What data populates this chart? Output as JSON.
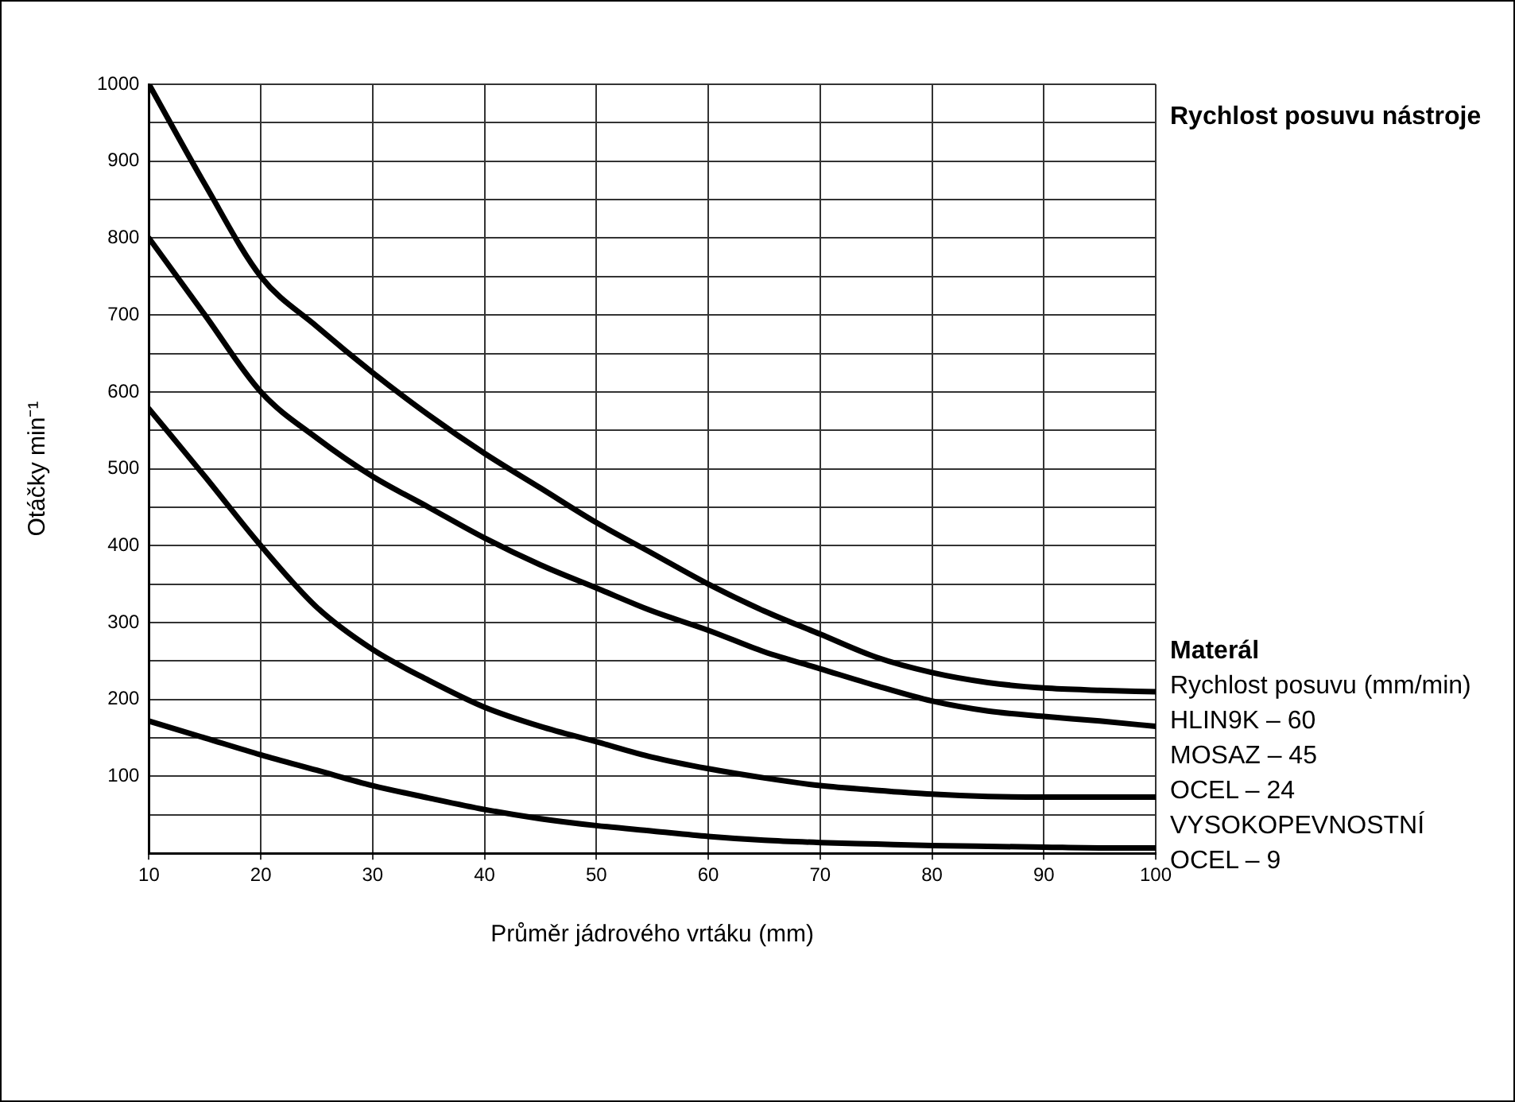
{
  "chart_data": {
    "type": "line",
    "title": "Rychlost posuvu nástroje",
    "xlabel": "Průměr jádrového vrtáku (mm)",
    "ylabel": "Otáčky min⁻¹",
    "legend_title": "Materál",
    "annotations": [
      "Rychlost posuvu (mm/min)",
      "HLIN9K – 60",
      "MOSAZ – 45",
      "OCEL – 24",
      "VYSOKOPEVNOSTNÍ",
      "OCEL – 9"
    ],
    "x": [
      10,
      15,
      20,
      25,
      30,
      35,
      40,
      45,
      50,
      55,
      60,
      65,
      70,
      75,
      80,
      85,
      90,
      95,
      100
    ],
    "series": [
      {
        "color": "#000000",
        "values": [
          1000,
          870,
          750,
          685,
          625,
          570,
          520,
          475,
          430,
          390,
          350,
          315,
          285,
          255,
          235,
          222,
          215,
          212,
          210
        ]
      },
      {
        "color": "#000000",
        "values": [
          800,
          700,
          600,
          540,
          490,
          450,
          410,
          375,
          345,
          315,
          290,
          262,
          240,
          218,
          198,
          185,
          178,
          172,
          165
        ]
      },
      {
        "color": "#000000",
        "values": [
          578,
          490,
          400,
          320,
          265,
          225,
          190,
          165,
          145,
          125,
          110,
          98,
          88,
          82,
          77,
          74,
          73,
          73,
          73
        ]
      },
      {
        "color": "#000000",
        "values": [
          172,
          150,
          128,
          108,
          88,
          72,
          57,
          45,
          36,
          29,
          22,
          17,
          14,
          12,
          10,
          9,
          8,
          7,
          7
        ]
      }
    ],
    "xlim": [
      10,
      100
    ],
    "ylim": [
      0,
      1000
    ],
    "xticks": [
      10,
      20,
      30,
      40,
      50,
      60,
      70,
      80,
      90,
      100
    ],
    "yticks": [
      {
        "value": 0,
        "label": null
      },
      {
        "value": 50,
        "label": null
      },
      100,
      {
        "value": 150,
        "label": null
      },
      200,
      {
        "value": 250,
        "label": null
      },
      300,
      {
        "value": 350,
        "label": null
      },
      400,
      {
        "value": 450,
        "label": null
      },
      500,
      {
        "value": 550,
        "label": null
      },
      600,
      {
        "value": 650,
        "label": null
      },
      700,
      {
        "value": 750,
        "label": null
      },
      800,
      {
        "value": 850,
        "label": null
      },
      900,
      {
        "value": 950,
        "label": null
      },
      1000
    ],
    "grid": true,
    "legend": false,
    "marker": "none",
    "line_style": "solid"
  }
}
